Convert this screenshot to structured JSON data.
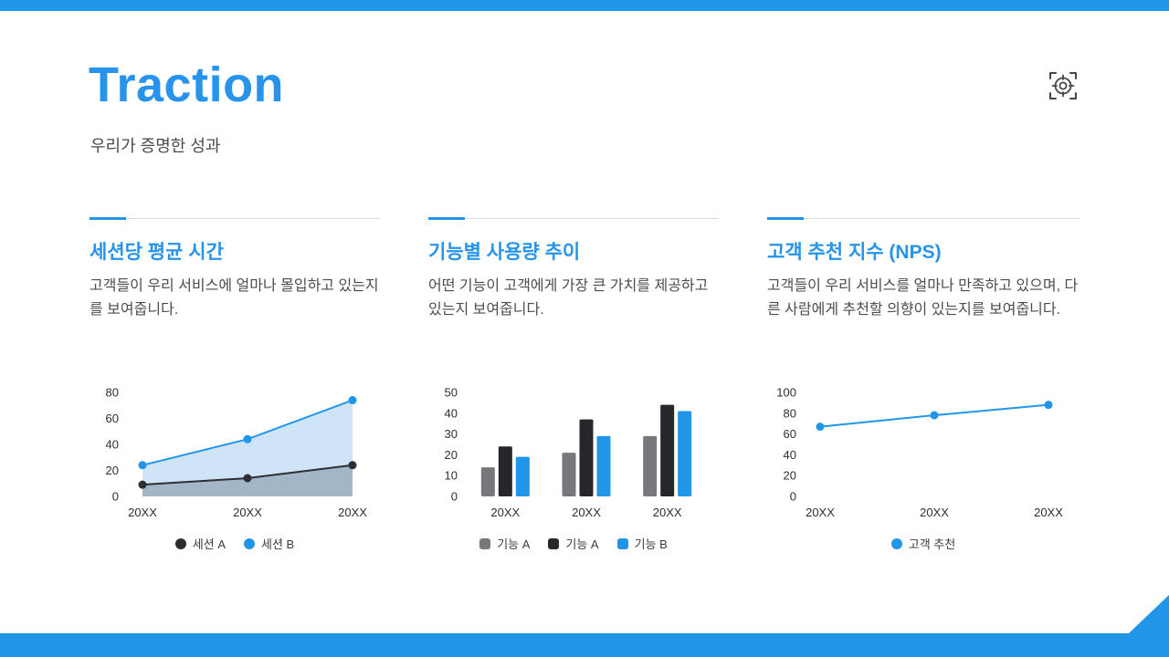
{
  "page": {
    "title": "Traction",
    "subtitle": "우리가 증명한 성과"
  },
  "colors": {
    "accent_blue": "#2196e8",
    "heading_blue": "#2793ea",
    "dark_series": "#2c2e33",
    "gray_series": "#77787b",
    "body_text": "#4c4c4c",
    "divider_gray": "#d9d9d9"
  },
  "icons": {
    "target_icon": "scan-target-crosshair"
  },
  "columns": [
    {
      "heading": "세션당 평균 시간",
      "description": "고객들이 우리 서비스에 얼마나 몰입하고 있는지를 보여줍니다."
    },
    {
      "heading": "기능별 사용량 추이",
      "description": "어떤 기능이 고객에게 가장 큰 가치를 제공하고 있는지 보여줍니다."
    },
    {
      "heading": "고객 추천 지수 (NPS)",
      "description": "고객들이 우리 서비스를 얼마나 만족하고 있으며, 다른 사람에게 추천할 의향이 있는지를 보여줍니다."
    }
  ],
  "chart_data": [
    {
      "type": "area",
      "categories": [
        "20XX",
        "20XX",
        "20XX"
      ],
      "series": [
        {
          "name": "세션 A",
          "marker": "circle",
          "color": "#2c2e33",
          "fill": "rgba(70,85,100,0.32)",
          "values": [
            9,
            14,
            24
          ]
        },
        {
          "name": "세션 B",
          "marker": "circle",
          "color": "#2196e8",
          "fill": "#cfe5f7",
          "values": [
            24,
            44,
            74
          ]
        }
      ],
      "ylim": [
        0,
        80
      ],
      "yticks": [
        0,
        20,
        40,
        60,
        80
      ],
      "grid": false,
      "legend_position": "bottom"
    },
    {
      "type": "bar",
      "categories": [
        "20XX",
        "20XX",
        "20XX"
      ],
      "series": [
        {
          "name": "기능 A",
          "marker": "square",
          "color": "#77787b",
          "values": [
            14,
            21,
            29
          ]
        },
        {
          "name": "기능 A",
          "marker": "square",
          "color": "#26272b",
          "values": [
            24,
            37,
            44
          ]
        },
        {
          "name": "기능 B",
          "marker": "square",
          "color": "#2196e8",
          "values": [
            19,
            29,
            41
          ]
        }
      ],
      "ylim": [
        0,
        50
      ],
      "yticks": [
        0,
        10,
        20,
        30,
        40,
        50
      ],
      "grid": false,
      "legend_position": "bottom"
    },
    {
      "type": "line",
      "categories": [
        "20XX",
        "20XX",
        "20XX"
      ],
      "series": [
        {
          "name": "고객 추천",
          "marker": "circle",
          "color": "#2196e8",
          "values": [
            67,
            78,
            88
          ]
        }
      ],
      "ylim": [
        0,
        100
      ],
      "yticks": [
        0,
        20,
        40,
        60,
        80,
        100
      ],
      "grid": false,
      "legend_position": "bottom"
    }
  ]
}
